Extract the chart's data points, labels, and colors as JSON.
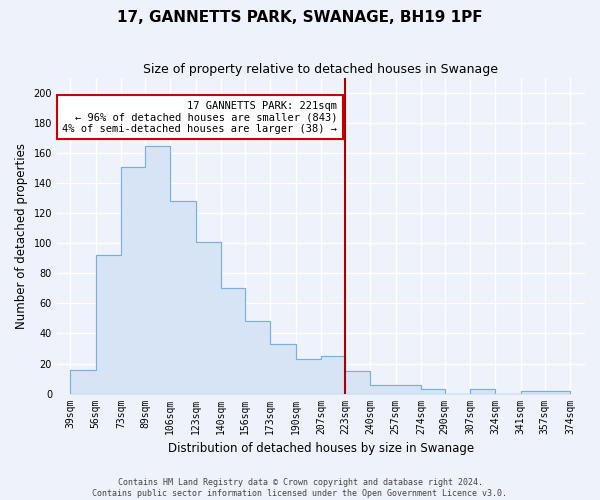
{
  "title": "17, GANNETTS PARK, SWANAGE, BH19 1PF",
  "subtitle": "Size of property relative to detached houses in Swanage",
  "xlabel": "Distribution of detached houses by size in Swanage",
  "ylabel": "Number of detached properties",
  "bin_edges": [
    39,
    56,
    73,
    89,
    106,
    123,
    140,
    156,
    173,
    190,
    207,
    223,
    240,
    257,
    274,
    290,
    307,
    324,
    341,
    357,
    374
  ],
  "bin_labels": [
    "39sqm",
    "56sqm",
    "73sqm",
    "89sqm",
    "106sqm",
    "123sqm",
    "140sqm",
    "156sqm",
    "173sqm",
    "190sqm",
    "207sqm",
    "223sqm",
    "240sqm",
    "257sqm",
    "274sqm",
    "290sqm",
    "307sqm",
    "324sqm",
    "341sqm",
    "357sqm",
    "374sqm"
  ],
  "counts": [
    16,
    92,
    151,
    165,
    128,
    101,
    70,
    48,
    33,
    23,
    25,
    15,
    6,
    6,
    3,
    0,
    3,
    0,
    2,
    2
  ],
  "bar_fill_color": "#d6e4f5",
  "bar_edge_color": "#7aade0",
  "vline_x": 223,
  "vline_color": "#aa0000",
  "annotation_title": "17 GANNETTS PARK: 221sqm",
  "annotation_line1": "← 96% of detached houses are smaller (843)",
  "annotation_line2": "4% of semi-detached houses are larger (38) →",
  "annotation_box_facecolor": "#ffffff",
  "annotation_box_edgecolor": "#cc0000",
  "footer_line1": "Contains HM Land Registry data © Crown copyright and database right 2024.",
  "footer_line2": "Contains public sector information licensed under the Open Government Licence v3.0.",
  "ylim": [
    0,
    210
  ],
  "yticks": [
    0,
    20,
    40,
    60,
    80,
    100,
    120,
    140,
    160,
    180,
    200
  ],
  "xlim_left": 30,
  "xlim_right": 384,
  "background_color": "#eef2fa",
  "plot_bg_color": "#eef2fa",
  "grid_color": "#ffffff",
  "title_fontsize": 11,
  "subtitle_fontsize": 9,
  "axis_label_fontsize": 8.5,
  "tick_fontsize": 7,
  "annotation_fontsize": 7.5,
  "footer_fontsize": 6
}
